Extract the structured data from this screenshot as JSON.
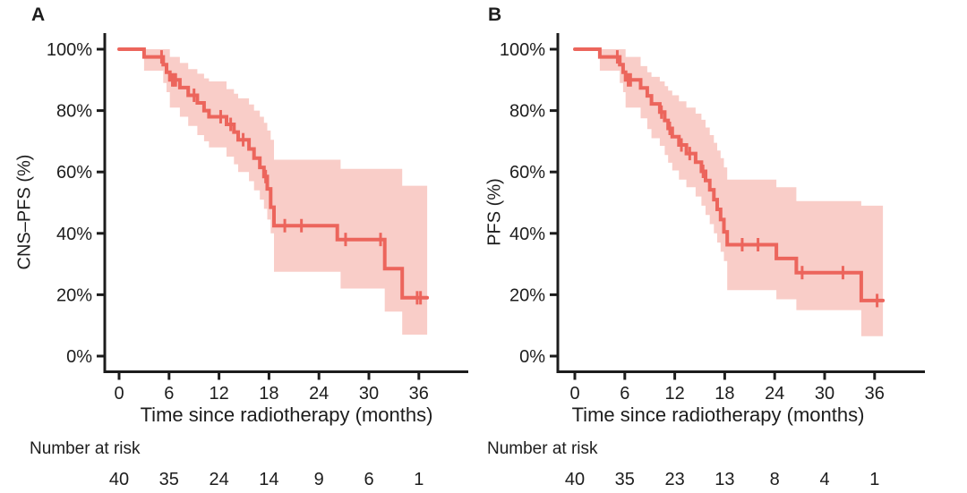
{
  "figure": {
    "risk_section_label": "Number at risk",
    "x_axis_label": "Time since radiotherapy (months)",
    "y_tick_values": [
      100,
      80,
      60,
      40,
      20,
      0
    ],
    "y_tick_labels": [
      "100%",
      "80%",
      "60%",
      "40%",
      "20%",
      "0%"
    ],
    "x_tick_values": [
      0,
      6,
      12,
      18,
      24,
      30,
      36
    ],
    "x_tick_labels": [
      "0",
      "6",
      "12",
      "18",
      "24",
      "30",
      "36"
    ],
    "colors": {
      "curve": "#ec655c",
      "band": "#f9cdc8",
      "axis": "#1c1c1c",
      "text": "#1d1d1d"
    }
  },
  "chart_data": [
    {
      "type": "line",
      "subtype": "kaplan-meier-step",
      "panel_label": "A",
      "ylabel": "CNS–PFS (%)",
      "xlabel": "Time since radiotherapy (months)",
      "xlim": [
        0,
        42
      ],
      "ylim": [
        0,
        100
      ],
      "grid": false,
      "legend": "none",
      "curve_percent": [
        [
          0,
          100
        ],
        [
          3,
          97.5
        ],
        [
          5.3,
          95
        ],
        [
          5.7,
          92.5
        ],
        [
          6.1,
          90
        ],
        [
          7.3,
          87.5
        ],
        [
          8.3,
          85
        ],
        [
          9.4,
          82.5
        ],
        [
          10.2,
          80
        ],
        [
          10.8,
          78
        ],
        [
          12.9,
          75.5
        ],
        [
          13.8,
          73
        ],
        [
          14.3,
          70.5
        ],
        [
          15.6,
          67.5
        ],
        [
          16.2,
          64.5
        ],
        [
          16.9,
          61.5
        ],
        [
          17.4,
          58.5
        ],
        [
          17.8,
          54.5
        ],
        [
          18.2,
          48.5
        ],
        [
          18.6,
          42.5
        ],
        [
          26.2,
          38
        ],
        [
          31.9,
          28.5
        ],
        [
          34,
          19
        ],
        [
          37,
          19
        ]
      ],
      "censor_marks_percent": [
        [
          5.1,
          97.5
        ],
        [
          6.4,
          90
        ],
        [
          6.6,
          90
        ],
        [
          6.8,
          90
        ],
        [
          9,
          85
        ],
        [
          12.2,
          78
        ],
        [
          13.4,
          75.5
        ],
        [
          14.9,
          70.5
        ],
        [
          17.6,
          58.5
        ],
        [
          19.9,
          42.5
        ],
        [
          21.9,
          42.5
        ],
        [
          27.2,
          38
        ],
        [
          31.4,
          38
        ],
        [
          35.8,
          19
        ],
        [
          36.2,
          19
        ]
      ],
      "ci_upper_percent": [
        [
          3,
          100
        ],
        [
          6.1,
          97.5
        ],
        [
          7.3,
          95.5
        ],
        [
          8.3,
          93.5
        ],
        [
          9.4,
          92
        ],
        [
          10.2,
          90.5
        ],
        [
          10.8,
          89.5
        ],
        [
          12.9,
          87
        ],
        [
          13.8,
          85.5
        ],
        [
          14.3,
          84
        ],
        [
          15.6,
          82
        ],
        [
          16.2,
          80
        ],
        [
          16.9,
          78
        ],
        [
          17.4,
          76
        ],
        [
          17.8,
          73.5
        ],
        [
          18.2,
          70.5
        ],
        [
          18.6,
          64
        ],
        [
          26.6,
          61
        ],
        [
          34,
          55.5
        ],
        [
          37,
          55.5
        ]
      ],
      "ci_lower_percent": [
        [
          3,
          93
        ],
        [
          5.3,
          89
        ],
        [
          5.7,
          86
        ],
        [
          6.1,
          81
        ],
        [
          7.3,
          78
        ],
        [
          8.3,
          75
        ],
        [
          9.4,
          72
        ],
        [
          10.2,
          70
        ],
        [
          10.8,
          68
        ],
        [
          12.9,
          65
        ],
        [
          13.8,
          62.5
        ],
        [
          14.3,
          60
        ],
        [
          15.6,
          57
        ],
        [
          16.2,
          54
        ],
        [
          16.9,
          51
        ],
        [
          17.4,
          48
        ],
        [
          17.8,
          44.5
        ],
        [
          18.2,
          40
        ],
        [
          18.6,
          27.5
        ],
        [
          26.6,
          22
        ],
        [
          31.9,
          14.5
        ],
        [
          34,
          7
        ],
        [
          37,
          7
        ]
      ],
      "number_at_risk": {
        "times": [
          0,
          6,
          12,
          18,
          24,
          30,
          36
        ],
        "counts": [
          "40",
          "35",
          "24",
          "14",
          "9",
          "6",
          "1"
        ]
      }
    },
    {
      "type": "line",
      "subtype": "kaplan-meier-step",
      "panel_label": "B",
      "ylabel": "PFS (%)",
      "xlabel": "Time since radiotherapy (months)",
      "xlim": [
        0,
        42
      ],
      "ylim": [
        0,
        100
      ],
      "grid": false,
      "legend": "none",
      "curve_percent": [
        [
          0,
          100
        ],
        [
          3,
          97.5
        ],
        [
          5.4,
          95
        ],
        [
          5.8,
          92.5
        ],
        [
          6.1,
          90
        ],
        [
          7.9,
          87.4
        ],
        [
          8.7,
          84.8
        ],
        [
          9.2,
          82.2
        ],
        [
          10.2,
          79.5
        ],
        [
          10.8,
          76.8
        ],
        [
          11.2,
          74.2
        ],
        [
          11.7,
          71.5
        ],
        [
          12.5,
          68.8
        ],
        [
          13.4,
          66
        ],
        [
          14.5,
          63.2
        ],
        [
          15.2,
          60.2
        ],
        [
          15.7,
          57.2
        ],
        [
          16.2,
          54.2
        ],
        [
          16.7,
          51
        ],
        [
          17.1,
          47.8
        ],
        [
          17.5,
          44.5
        ],
        [
          17.9,
          40.5
        ],
        [
          18.3,
          36.3
        ],
        [
          24.2,
          31.8
        ],
        [
          26.6,
          27.2
        ],
        [
          34.4,
          18.1
        ],
        [
          37,
          18.1
        ]
      ],
      "censor_marks_percent": [
        [
          5.1,
          97.5
        ],
        [
          6.4,
          90
        ],
        [
          6.7,
          90
        ],
        [
          10.4,
          79.5
        ],
        [
          11.4,
          74.2
        ],
        [
          12.8,
          68.8
        ],
        [
          13.8,
          66
        ],
        [
          15.4,
          60.2
        ],
        [
          20.1,
          36.3
        ],
        [
          22,
          36.3
        ],
        [
          27.3,
          27.2
        ],
        [
          32.2,
          27.2
        ],
        [
          36.3,
          18.1
        ]
      ],
      "ci_upper_percent": [
        [
          3,
          100
        ],
        [
          6.1,
          97.5
        ],
        [
          7.9,
          94.5
        ],
        [
          8.7,
          92.5
        ],
        [
          9.2,
          91
        ],
        [
          10.2,
          89.5
        ],
        [
          10.8,
          88
        ],
        [
          11.2,
          86.5
        ],
        [
          11.7,
          85
        ],
        [
          12.5,
          83
        ],
        [
          13.4,
          81
        ],
        [
          14.5,
          79
        ],
        [
          15.2,
          77
        ],
        [
          15.7,
          74.5
        ],
        [
          16.2,
          72
        ],
        [
          16.7,
          69.5
        ],
        [
          17.1,
          67
        ],
        [
          17.5,
          64.5
        ],
        [
          17.9,
          61.5
        ],
        [
          18.3,
          57.5
        ],
        [
          24.2,
          55
        ],
        [
          26.6,
          50.5
        ],
        [
          34.4,
          49
        ],
        [
          37,
          49
        ]
      ],
      "ci_lower_percent": [
        [
          3,
          93
        ],
        [
          5.4,
          89
        ],
        [
          5.8,
          86
        ],
        [
          6.1,
          81
        ],
        [
          7.9,
          77.5
        ],
        [
          8.7,
          74
        ],
        [
          9.2,
          71
        ],
        [
          10.2,
          68.5
        ],
        [
          10.8,
          65.5
        ],
        [
          11.2,
          63
        ],
        [
          11.7,
          60.5
        ],
        [
          12.5,
          57.5
        ],
        [
          13.4,
          55
        ],
        [
          14.5,
          52
        ],
        [
          15.2,
          49
        ],
        [
          15.7,
          46
        ],
        [
          16.2,
          43
        ],
        [
          16.7,
          40
        ],
        [
          17.1,
          37
        ],
        [
          17.5,
          34
        ],
        [
          17.9,
          31
        ],
        [
          18.3,
          21.5
        ],
        [
          24.2,
          18.5
        ],
        [
          26.6,
          15
        ],
        [
          34.4,
          6.5
        ],
        [
          37,
          6.5
        ]
      ],
      "number_at_risk": {
        "times": [
          0,
          6,
          12,
          18,
          24,
          30,
          36
        ],
        "counts": [
          "40",
          "35",
          "23",
          "13",
          "8",
          "4",
          "1"
        ]
      }
    }
  ]
}
